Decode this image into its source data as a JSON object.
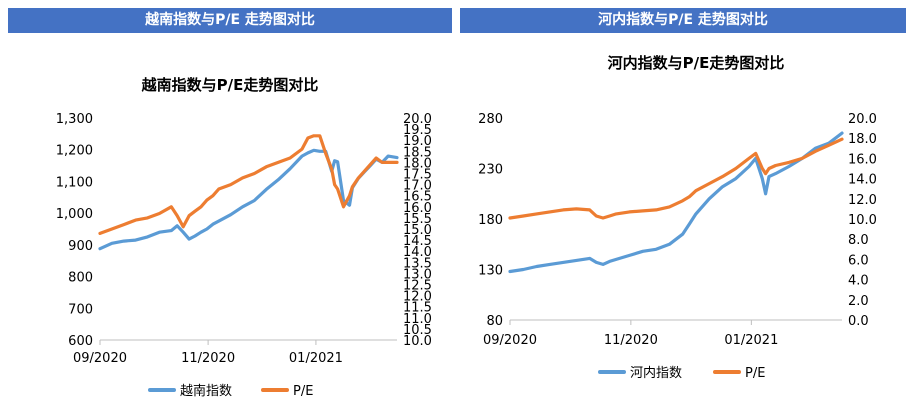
{
  "headers": {
    "left": "越南指数与P/E 走势图对比",
    "right": "河内指数与P/E 走势图对比"
  },
  "chart_data": [
    {
      "type": "line",
      "title": "越南指数与P/E走势图对比",
      "x_tick_labels": [
        "09/2020",
        "11/2020",
        "01/2021"
      ],
      "x_tick_positions": [
        0,
        0.364,
        0.727
      ],
      "y_left": {
        "min": 600,
        "max": 1300,
        "step": 100,
        "tick_labels": [
          "600",
          "700",
          "800",
          "900",
          "1,000",
          "1,100",
          "1,200",
          "1,300"
        ]
      },
      "y_right": {
        "min": 10.0,
        "max": 20.0,
        "step": 0.5,
        "tick_labels": [
          "10.0",
          "10.5",
          "11.0",
          "11.5",
          "12.0",
          "12.5",
          "13.0",
          "13.5",
          "14.0",
          "14.5",
          "15.0",
          "15.5",
          "16.0",
          "16.5",
          "17.0",
          "17.5",
          "18.0",
          "18.5",
          "19.0",
          "19.5",
          "20.0"
        ]
      },
      "series": [
        {
          "name": "越南指数",
          "axis": "left",
          "color": "#5B9BD5",
          "x": [
            0,
            0.04,
            0.08,
            0.12,
            0.16,
            0.2,
            0.24,
            0.26,
            0.28,
            0.3,
            0.32,
            0.34,
            0.36,
            0.38,
            0.4,
            0.44,
            0.48,
            0.52,
            0.56,
            0.6,
            0.64,
            0.68,
            0.7,
            0.72,
            0.74,
            0.76,
            0.78,
            0.79,
            0.8,
            0.82,
            0.84,
            0.85,
            0.87,
            0.89,
            0.91,
            0.93,
            0.95,
            0.97,
            1.0
          ],
          "values": [
            888,
            905,
            912,
            915,
            925,
            940,
            945,
            960,
            940,
            918,
            928,
            940,
            950,
            965,
            975,
            995,
            1020,
            1040,
            1075,
            1105,
            1140,
            1180,
            1190,
            1198,
            1195,
            1195,
            1132,
            1165,
            1162,
            1040,
            1025,
            1080,
            1110,
            1130,
            1150,
            1170,
            1160,
            1180,
            1175
          ]
        },
        {
          "name": "P/E",
          "axis": "right",
          "color": "#ED7D31",
          "x": [
            0,
            0.04,
            0.08,
            0.12,
            0.16,
            0.2,
            0.24,
            0.26,
            0.28,
            0.3,
            0.32,
            0.34,
            0.36,
            0.38,
            0.4,
            0.44,
            0.48,
            0.52,
            0.56,
            0.6,
            0.64,
            0.68,
            0.7,
            0.72,
            0.74,
            0.76,
            0.78,
            0.79,
            0.8,
            0.82,
            0.84,
            0.85,
            0.87,
            0.89,
            0.91,
            0.93,
            0.95,
            0.97,
            1.0
          ],
          "values": [
            14.8,
            15.0,
            15.2,
            15.4,
            15.5,
            15.7,
            16.0,
            15.6,
            15.1,
            15.6,
            15.8,
            16.0,
            16.3,
            16.5,
            16.8,
            17.0,
            17.3,
            17.5,
            17.8,
            18.0,
            18.2,
            18.6,
            19.1,
            19.2,
            19.2,
            18.4,
            17.7,
            17.0,
            16.8,
            16.0,
            16.5,
            16.9,
            17.3,
            17.6,
            17.9,
            18.2,
            18.0,
            18.0,
            18.0
          ]
        }
      ]
    },
    {
      "type": "line",
      "title": "河内指数与P/E走势图对比",
      "x_tick_labels": [
        "09/2020",
        "11/2020",
        "01/2021"
      ],
      "x_tick_positions": [
        0,
        0.364,
        0.727
      ],
      "y_left": {
        "min": 80,
        "max": 280,
        "step": 50,
        "tick_labels": [
          "80",
          "130",
          "180",
          "230",
          "280"
        ]
      },
      "y_right": {
        "min": 0.0,
        "max": 20.0,
        "step": 2.0,
        "tick_labels": [
          "0.0",
          "2.0",
          "4.0",
          "6.0",
          "8.0",
          "10.0",
          "12.0",
          "14.0",
          "16.0",
          "18.0",
          "20.0"
        ]
      },
      "series": [
        {
          "name": "河内指数",
          "axis": "left",
          "color": "#5B9BD5",
          "x": [
            0,
            0.04,
            0.08,
            0.12,
            0.16,
            0.2,
            0.24,
            0.26,
            0.28,
            0.3,
            0.32,
            0.36,
            0.4,
            0.44,
            0.48,
            0.52,
            0.54,
            0.56,
            0.6,
            0.64,
            0.68,
            0.72,
            0.74,
            0.76,
            0.77,
            0.78,
            0.8,
            0.84,
            0.88,
            0.92,
            0.96,
            1.0
          ],
          "values": [
            128,
            130,
            133,
            135,
            137,
            139,
            141,
            137,
            135,
            138,
            140,
            144,
            148,
            150,
            155,
            165,
            175,
            185,
            200,
            212,
            220,
            232,
            240,
            220,
            205,
            222,
            225,
            232,
            240,
            250,
            255,
            265
          ]
        },
        {
          "name": "P/E",
          "axis": "right",
          "color": "#ED7D31",
          "x": [
            0,
            0.04,
            0.08,
            0.12,
            0.16,
            0.2,
            0.24,
            0.26,
            0.28,
            0.3,
            0.32,
            0.36,
            0.4,
            0.44,
            0.48,
            0.52,
            0.54,
            0.56,
            0.6,
            0.64,
            0.68,
            0.72,
            0.74,
            0.76,
            0.77,
            0.78,
            0.8,
            0.84,
            0.88,
            0.92,
            0.96,
            1.0
          ],
          "values": [
            10.1,
            10.3,
            10.5,
            10.7,
            10.9,
            11.0,
            10.9,
            10.3,
            10.1,
            10.3,
            10.5,
            10.7,
            10.8,
            10.9,
            11.2,
            11.8,
            12.2,
            12.8,
            13.5,
            14.2,
            15.0,
            16.0,
            16.5,
            15.0,
            14.5,
            15.0,
            15.3,
            15.6,
            16.0,
            16.7,
            17.3,
            17.9
          ]
        }
      ]
    }
  ]
}
